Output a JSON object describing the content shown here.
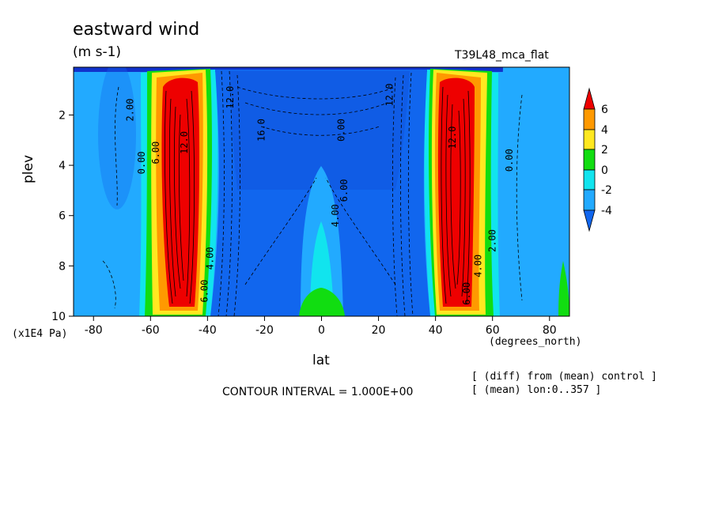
{
  "header": {
    "title": "eastward wind",
    "units": "(m s-1)",
    "run_id": "T39L48_mca_flat"
  },
  "footer": {
    "contour_interval": "CONTOUR INTERVAL = 1.000E+00",
    "info_line1": "[ (diff) from (mean) control ]",
    "info_line2": "[ (mean) lon:0..357 ]"
  },
  "colors": {
    "red": "#ee0000",
    "orange": "#ff9900",
    "yellow": "#ffe820",
    "green": "#11dd11",
    "cyan": "#11e4ee",
    "lightblue": "#22aaff",
    "blue": "#1166ee",
    "darkblue": "#1133cc"
  },
  "chart_data": {
    "type": "contour",
    "xlabel": "lat",
    "xunit": "(degrees_north)",
    "ylabel": "plev",
    "yunit": "(x1E4 Pa)",
    "xlim": [
      -87,
      87
    ],
    "ylim": [
      0.1,
      10
    ],
    "y_inverted": true,
    "xticks": [
      -80,
      -60,
      -40,
      -20,
      0,
      20,
      40,
      60,
      80
    ],
    "yticks": [
      2,
      4,
      6,
      8,
      10
    ],
    "colorbar": {
      "labels": [
        "6",
        "4",
        "2",
        "0",
        "-2",
        "-4"
      ],
      "extend": "both"
    },
    "contour_labels": [
      {
        "text": "2.00",
        "lat": -66,
        "plev": 1.8
      },
      {
        "text": "0.00",
        "lat": -62,
        "plev": 3.9
      },
      {
        "text": "6.00",
        "lat": -57,
        "plev": 3.5
      },
      {
        "text": "12.0",
        "lat": -47,
        "plev": 3.1
      },
      {
        "text": "4.00",
        "lat": -38,
        "plev": 7.7
      },
      {
        "text": "6.00",
        "lat": -40,
        "plev": 9.0
      },
      {
        "text": "12.0",
        "lat": -31,
        "plev": 1.3
      },
      {
        "text": "16.0",
        "lat": -20,
        "plev": 2.6
      },
      {
        "text": "0.00",
        "lat": 8,
        "plev": 2.6
      },
      {
        "text": "6.00",
        "lat": 9,
        "plev": 5.0
      },
      {
        "text": "4.00",
        "lat": 6,
        "plev": 6.0
      },
      {
        "text": "12.0",
        "lat": 25,
        "plev": 1.2
      },
      {
        "text": "12.0",
        "lat": 47,
        "plev": 2.9
      },
      {
        "text": "0.00",
        "lat": 67,
        "plev": 3.8
      },
      {
        "text": "2.00",
        "lat": 61,
        "plev": 7.0
      },
      {
        "text": "4.00",
        "lat": 56,
        "plev": 8.0
      },
      {
        "text": "6.00",
        "lat": 52,
        "plev": 9.1
      }
    ]
  }
}
